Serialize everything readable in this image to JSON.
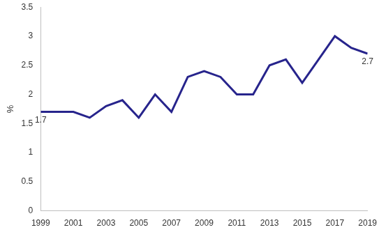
{
  "chart_data": {
    "type": "line",
    "y_label": "%",
    "categories": [
      "1999",
      null,
      "2001",
      null,
      "2003",
      null,
      "2005",
      null,
      "2007",
      null,
      "2009",
      null,
      "2011",
      null,
      "2013",
      null,
      "2015",
      null,
      "2017",
      null,
      "2019"
    ],
    "values": [
      1.7,
      1.7,
      1.7,
      1.6,
      1.8,
      1.9,
      1.6,
      2.0,
      1.7,
      2.3,
      2.4,
      2.3,
      2.0,
      2.0,
      2.5,
      2.6,
      2.2,
      2.6,
      3.0,
      2.8,
      2.7
    ],
    "value_labels": [
      "1.7",
      null,
      null,
      null,
      null,
      null,
      null,
      null,
      null,
      null,
      null,
      null,
      null,
      null,
      null,
      null,
      null,
      null,
      null,
      null,
      "2.7"
    ],
    "color": "#27248c",
    "ylim": [
      0,
      3.5
    ],
    "yticks": [
      0,
      0.5,
      1,
      1.5,
      2,
      2.5,
      3,
      3.5
    ],
    "grid": false
  }
}
